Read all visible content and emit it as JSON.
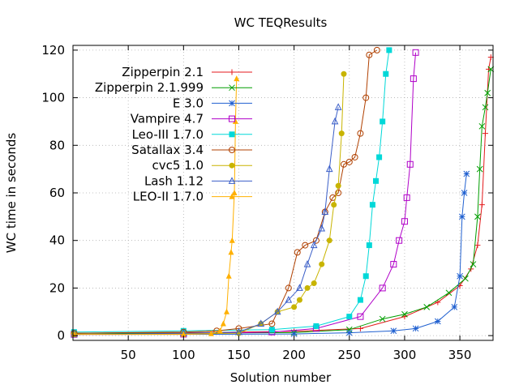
{
  "chart_data": {
    "type": "line",
    "title": "WC TEQResults",
    "xlabel": "Solution number",
    "ylabel": "WC time in seconds",
    "xlim": [
      0,
      380
    ],
    "ylim": [
      -2,
      122
    ],
    "xticks": [
      50,
      100,
      150,
      200,
      250,
      300,
      350
    ],
    "yticks": [
      0,
      20,
      40,
      60,
      80,
      100,
      120
    ],
    "grid": true,
    "legend_position": "top-left",
    "series": [
      {
        "name": "Zipperpin 2.1",
        "color": "#e41a1c",
        "marker": "plus",
        "points": [
          [
            1,
            1
          ],
          [
            100,
            1.2
          ],
          [
            200,
            1.8
          ],
          [
            260,
            3
          ],
          [
            300,
            8
          ],
          [
            330,
            14
          ],
          [
            350,
            21
          ],
          [
            360,
            28
          ],
          [
            366,
            38
          ],
          [
            370,
            55
          ],
          [
            373,
            85
          ],
          [
            376,
            112
          ],
          [
            378,
            117
          ]
        ]
      },
      {
        "name": "Zipperpin 2.1.999",
        "color": "#009e00",
        "marker": "cross",
        "points": [
          [
            1,
            1
          ],
          [
            100,
            1
          ],
          [
            200,
            1.3
          ],
          [
            250,
            2.5
          ],
          [
            280,
            7
          ],
          [
            300,
            9
          ],
          [
            320,
            12
          ],
          [
            340,
            18
          ],
          [
            355,
            24
          ],
          [
            362,
            30
          ],
          [
            366,
            50
          ],
          [
            368,
            70
          ],
          [
            370,
            88
          ],
          [
            373,
            96
          ],
          [
            375,
            102
          ],
          [
            378,
            112
          ]
        ]
      },
      {
        "name": "E 3.0",
        "color": "#2060d0",
        "marker": "star",
        "points": [
          [
            1,
            0.5
          ],
          [
            100,
            0.5
          ],
          [
            200,
            0.7
          ],
          [
            250,
            1.2
          ],
          [
            290,
            2
          ],
          [
            310,
            3
          ],
          [
            330,
            6
          ],
          [
            345,
            12
          ],
          [
            350,
            25
          ],
          [
            352,
            50
          ],
          [
            354,
            60
          ],
          [
            356,
            68
          ]
        ]
      },
      {
        "name": "Vampire 4.7",
        "color": "#b000c8",
        "marker": "square",
        "points": [
          [
            1,
            0.5
          ],
          [
            100,
            0.6
          ],
          [
            180,
            1.5
          ],
          [
            220,
            3
          ],
          [
            260,
            8
          ],
          [
            280,
            20
          ],
          [
            290,
            30
          ],
          [
            295,
            40
          ],
          [
            300,
            48
          ],
          [
            302,
            58
          ],
          [
            305,
            72
          ],
          [
            308,
            108
          ],
          [
            310,
            119
          ]
        ]
      },
      {
        "name": "Leo-III 1.7.0",
        "color": "#00d8d8",
        "marker": "filled-square",
        "points": [
          [
            1,
            1.5
          ],
          [
            100,
            2
          ],
          [
            180,
            2.5
          ],
          [
            220,
            4
          ],
          [
            250,
            8
          ],
          [
            260,
            15
          ],
          [
            265,
            25
          ],
          [
            268,
            38
          ],
          [
            271,
            55
          ],
          [
            274,
            65
          ],
          [
            277,
            75
          ],
          [
            280,
            90
          ],
          [
            283,
            110
          ],
          [
            286,
            120
          ]
        ]
      },
      {
        "name": "Satallax 3.4",
        "color": "#b04000",
        "marker": "circle",
        "points": [
          [
            1,
            1
          ],
          [
            100,
            1.5
          ],
          [
            130,
            2
          ],
          [
            150,
            3
          ],
          [
            180,
            5
          ],
          [
            195,
            20
          ],
          [
            203,
            35
          ],
          [
            210,
            38
          ],
          [
            220,
            40
          ],
          [
            228,
            52
          ],
          [
            235,
            58
          ],
          [
            240,
            60
          ],
          [
            245,
            72
          ],
          [
            250,
            73
          ],
          [
            255,
            75
          ],
          [
            260,
            85
          ],
          [
            265,
            100
          ],
          [
            268,
            118
          ],
          [
            275,
            120
          ]
        ]
      },
      {
        "name": "cvc5 1.0",
        "color": "#c8b400",
        "marker": "filled-circle",
        "points": [
          [
            1,
            0.5
          ],
          [
            100,
            0.8
          ],
          [
            150,
            1
          ],
          [
            170,
            5
          ],
          [
            185,
            10
          ],
          [
            200,
            12
          ],
          [
            205,
            15
          ],
          [
            212,
            20
          ],
          [
            218,
            22
          ],
          [
            225,
            30
          ],
          [
            232,
            40
          ],
          [
            236,
            55
          ],
          [
            240,
            63
          ],
          [
            243,
            85
          ],
          [
            245,
            110
          ]
        ]
      },
      {
        "name": "Lash 1.12",
        "color": "#3a5ec8",
        "marker": "triangle",
        "points": [
          [
            1,
            0.5
          ],
          [
            100,
            1
          ],
          [
            150,
            1.5
          ],
          [
            170,
            5
          ],
          [
            185,
            10
          ],
          [
            195,
            15
          ],
          [
            205,
            20
          ],
          [
            212,
            30
          ],
          [
            218,
            38
          ],
          [
            225,
            45
          ],
          [
            228,
            52
          ],
          [
            232,
            70
          ],
          [
            237,
            90
          ],
          [
            240,
            96
          ]
        ]
      },
      {
        "name": "LEO-II 1.7.0",
        "color": "#ffb000",
        "marker": "filled-triangle",
        "points": [
          [
            1,
            0.5
          ],
          [
            100,
            0.5
          ],
          [
            125,
            0.8
          ],
          [
            133,
            2
          ],
          [
            136,
            5
          ],
          [
            139,
            10
          ],
          [
            141,
            25
          ],
          [
            143,
            35
          ],
          [
            144,
            40
          ],
          [
            146,
            60
          ],
          [
            147,
            90
          ],
          [
            148,
            108
          ]
        ]
      }
    ]
  }
}
